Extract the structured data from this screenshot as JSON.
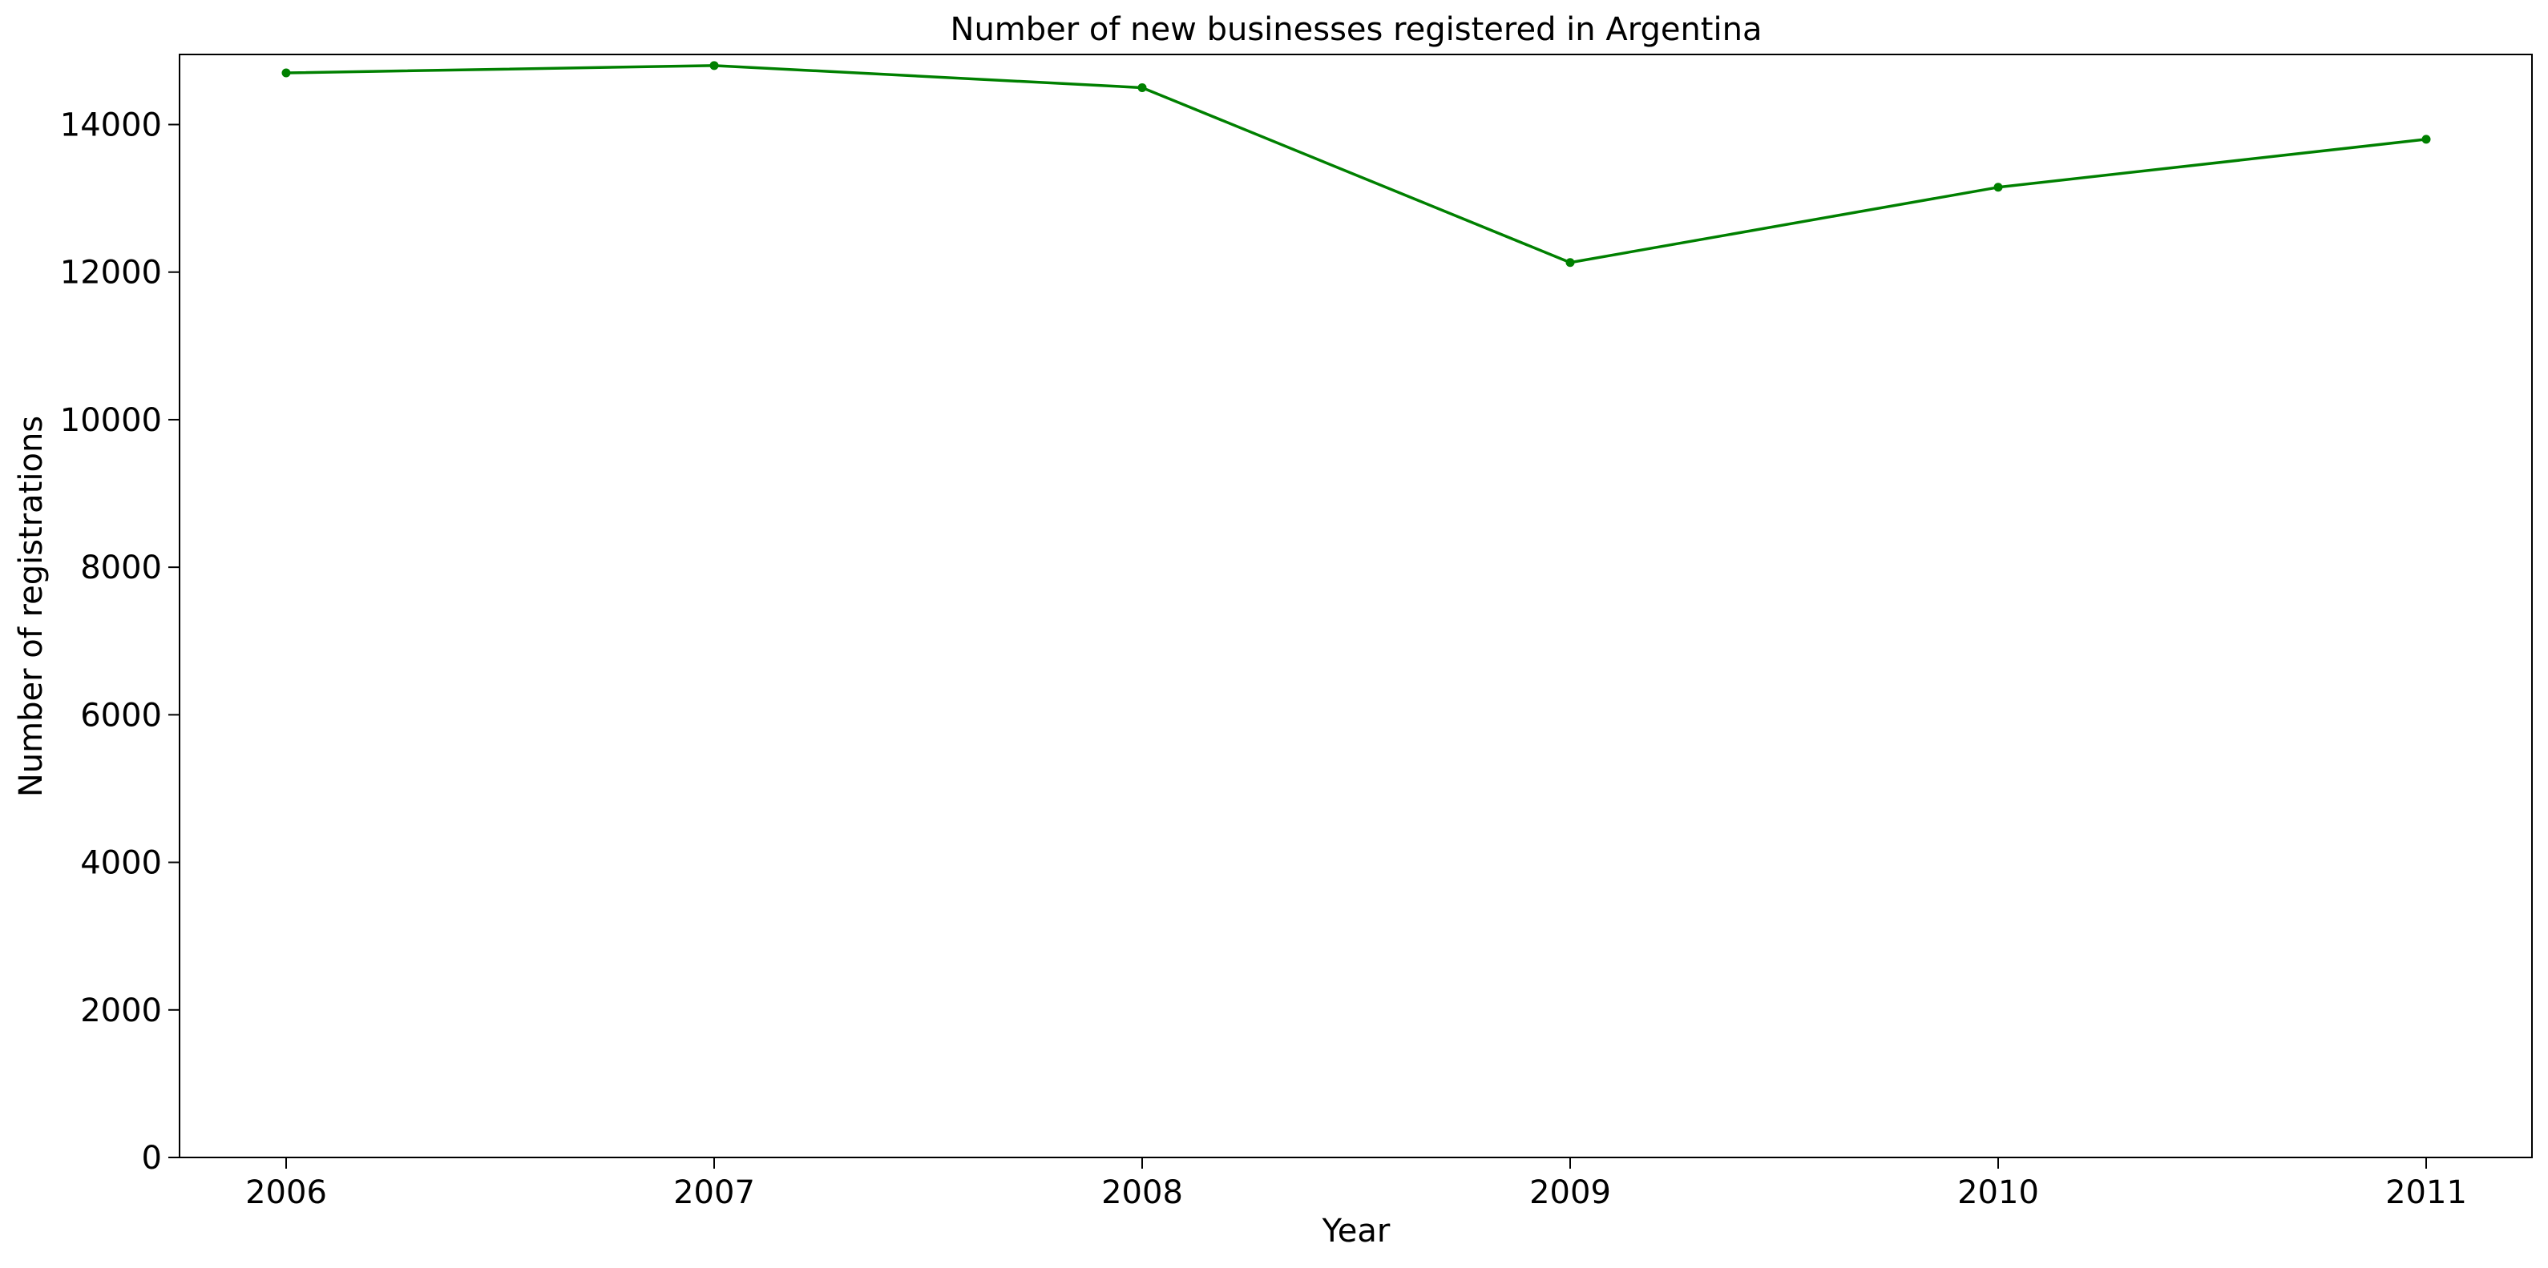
{
  "chart_data": {
    "type": "line",
    "title": "Number of new businesses registered in Argentina",
    "xlabel": "Year",
    "ylabel": "Number of registrations",
    "x": [
      "2006",
      "2007",
      "2008",
      "2009",
      "2010",
      "2011"
    ],
    "series": [
      {
        "values": [
          14700,
          14800,
          14500,
          12130,
          13150,
          13800
        ],
        "color": "#008000",
        "marker": "circle"
      }
    ],
    "ylim": [
      0,
      14950
    ],
    "yticks": [
      0,
      2000,
      4000,
      6000,
      8000,
      10000,
      12000,
      14000
    ],
    "grid": false,
    "legend": "none"
  }
}
